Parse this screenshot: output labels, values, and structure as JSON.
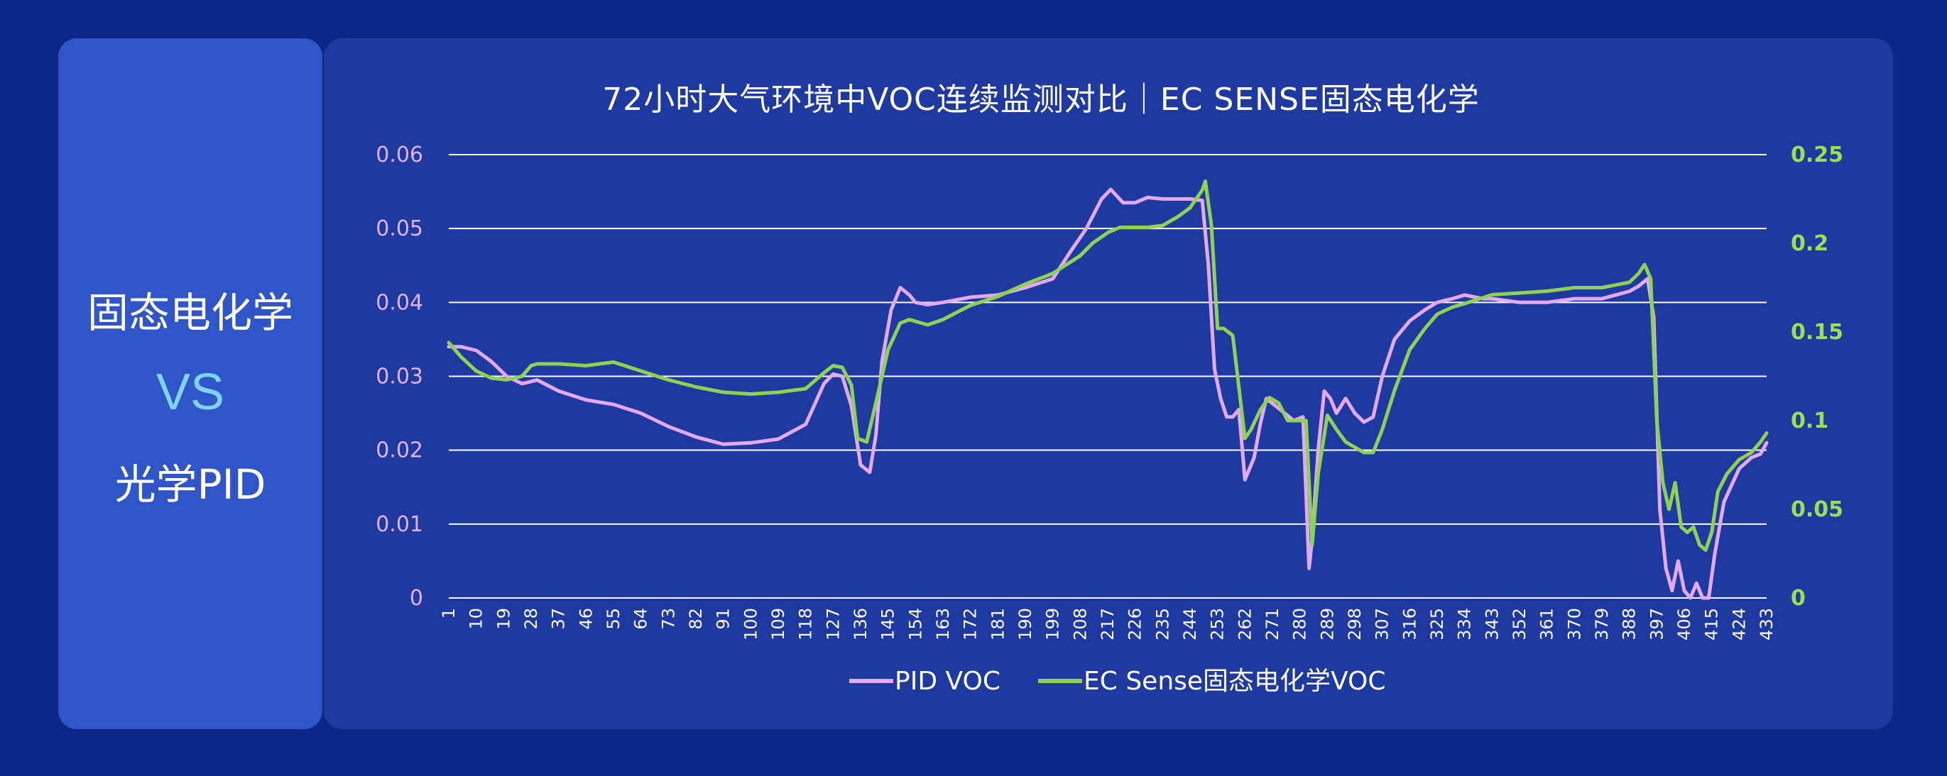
{
  "left_panel": {
    "line1": "固态电化学",
    "vs": "VS",
    "line2": "光学PID"
  },
  "colors": {
    "background": "#0c2689",
    "left_panel": "#2f55c9",
    "chart_panel": "#1e3aa0",
    "pid": "#e3a9f5",
    "ec": "#8fd151",
    "vs": "#7fd4f6"
  },
  "chart_data": {
    "type": "line",
    "title": "72小时大气环境中VOC连续监测对比｜EC SENSE固态电化学",
    "grid": true,
    "legend_position": "bottom-center",
    "left_axis": {
      "ylim": [
        0,
        0.06
      ],
      "ticks": [
        "0",
        "0.01",
        "0.02",
        "0.03",
        "0.04",
        "0.05",
        "0.06"
      ],
      "tick_values": [
        0,
        0.01,
        0.02,
        0.03,
        0.04,
        0.05,
        0.06
      ]
    },
    "right_axis": {
      "ylim": [
        0,
        0.25
      ],
      "ticks": [
        "0",
        "0.05",
        "0.1",
        "0.15",
        "0.2",
        "0.25"
      ],
      "tick_values": [
        0,
        0.05,
        0.1,
        0.15,
        0.2,
        0.25
      ]
    },
    "x_ticks": [
      "1",
      "10",
      "19",
      "28",
      "37",
      "46",
      "55",
      "64",
      "73",
      "82",
      "91",
      "100",
      "109",
      "118",
      "127",
      "136",
      "145",
      "154",
      "163",
      "172",
      "181",
      "190",
      "199",
      "208",
      "217",
      "226",
      "235",
      "244",
      "253",
      "262",
      "271",
      "280",
      "289",
      "298",
      "307",
      "316",
      "325",
      "334",
      "343",
      "352",
      "361",
      "370",
      "379",
      "388",
      "397",
      "406",
      "415",
      "424",
      "433"
    ],
    "x_range": [
      1,
      433
    ],
    "series": [
      {
        "name": "PID VOC",
        "axis": "left",
        "x": [
          1,
          5,
          10,
          15,
          20,
          25,
          30,
          37,
          46,
          55,
          64,
          73,
          82,
          91,
          100,
          109,
          118,
          124,
          127,
          130,
          133,
          136,
          139,
          141,
          143,
          146,
          149,
          152,
          154,
          158,
          163,
          172,
          181,
          190,
          199,
          205,
          210,
          215,
          218,
          222,
          226,
          230,
          235,
          240,
          244,
          248,
          250,
          252,
          254,
          256,
          258,
          260,
          262,
          265,
          267,
          269,
          272,
          275,
          278,
          281,
          283,
          284,
          286,
          288,
          290,
          292,
          295,
          298,
          301,
          304,
          307,
          311,
          316,
          321,
          325,
          330,
          334,
          340,
          343,
          352,
          361,
          370,
          379,
          388,
          391,
          394,
          396,
          398,
          400,
          402,
          404,
          406,
          408,
          410,
          412,
          414,
          416,
          419,
          424,
          428,
          431,
          433
        ],
        "values": [
          0.034,
          0.034,
          0.0335,
          0.032,
          0.03,
          0.029,
          0.0295,
          0.028,
          0.0268,
          0.0262,
          0.025,
          0.0232,
          0.0218,
          0.0208,
          0.021,
          0.0215,
          0.0235,
          0.029,
          0.0303,
          0.03,
          0.026,
          0.018,
          0.017,
          0.022,
          0.032,
          0.039,
          0.042,
          0.041,
          0.04,
          0.0397,
          0.04,
          0.0407,
          0.041,
          0.042,
          0.0432,
          0.047,
          0.05,
          0.054,
          0.0553,
          0.0535,
          0.0535,
          0.0542,
          0.054,
          0.054,
          0.054,
          0.0538,
          0.045,
          0.031,
          0.027,
          0.0245,
          0.0245,
          0.0255,
          0.016,
          0.019,
          0.0235,
          0.027,
          0.026,
          0.025,
          0.024,
          0.0245,
          0.004,
          0.008,
          0.02,
          0.028,
          0.027,
          0.025,
          0.027,
          0.025,
          0.0238,
          0.0245,
          0.03,
          0.035,
          0.0375,
          0.039,
          0.04,
          0.0405,
          0.041,
          0.0405,
          0.0405,
          0.04,
          0.04,
          0.0405,
          0.0405,
          0.0415,
          0.0422,
          0.0432,
          0.038,
          0.012,
          0.004,
          0.001,
          0.005,
          0.001,
          0,
          0.002,
          0,
          0,
          0.006,
          0.013,
          0.0175,
          0.019,
          0.0195,
          0.021
        ]
      },
      {
        "name": "EC Sense固态电化学VOC",
        "axis": "right",
        "x": [
          1,
          5,
          10,
          15,
          20,
          25,
          28,
          30,
          37,
          46,
          55,
          64,
          73,
          82,
          91,
          100,
          109,
          118,
          124,
          127,
          130,
          133,
          135,
          138,
          141,
          145,
          149,
          152,
          154,
          158,
          163,
          172,
          181,
          190,
          199,
          208,
          212,
          217,
          221,
          226,
          230,
          235,
          240,
          244,
          248,
          249,
          251,
          253,
          255,
          258,
          262,
          264,
          267,
          270,
          273,
          276,
          279,
          282,
          284,
          286,
          289,
          292,
          295,
          298,
          301,
          304,
          307,
          311,
          316,
          321,
          325,
          330,
          334,
          343,
          352,
          361,
          370,
          379,
          388,
          391,
          393,
          395,
          397,
          399,
          401,
          403,
          405,
          407,
          409,
          411,
          413,
          415,
          417,
          420,
          424,
          428,
          431,
          433
        ],
        "values": [
          0.144,
          0.136,
          0.128,
          0.124,
          0.123,
          0.125,
          0.131,
          0.132,
          0.132,
          0.131,
          0.133,
          0.128,
          0.123,
          0.119,
          0.116,
          0.115,
          0.116,
          0.118,
          0.127,
          0.131,
          0.13,
          0.12,
          0.09,
          0.088,
          0.11,
          0.14,
          0.155,
          0.157,
          0.156,
          0.154,
          0.157,
          0.165,
          0.17,
          0.177,
          0.183,
          0.193,
          0.2,
          0.206,
          0.209,
          0.209,
          0.209,
          0.21,
          0.215,
          0.22,
          0.23,
          0.235,
          0.21,
          0.152,
          0.152,
          0.148,
          0.09,
          0.095,
          0.106,
          0.113,
          0.11,
          0.1,
          0.1,
          0.1,
          0.03,
          0.07,
          0.103,
          0.095,
          0.088,
          0.085,
          0.082,
          0.082,
          0.095,
          0.117,
          0.14,
          0.152,
          0.16,
          0.164,
          0.166,
          0.171,
          0.172,
          0.173,
          0.175,
          0.175,
          0.178,
          0.183,
          0.188,
          0.18,
          0.1,
          0.065,
          0.05,
          0.065,
          0.04,
          0.037,
          0.04,
          0.03,
          0.027,
          0.037,
          0.06,
          0.07,
          0.078,
          0.082,
          0.088,
          0.093
        ]
      }
    ]
  }
}
